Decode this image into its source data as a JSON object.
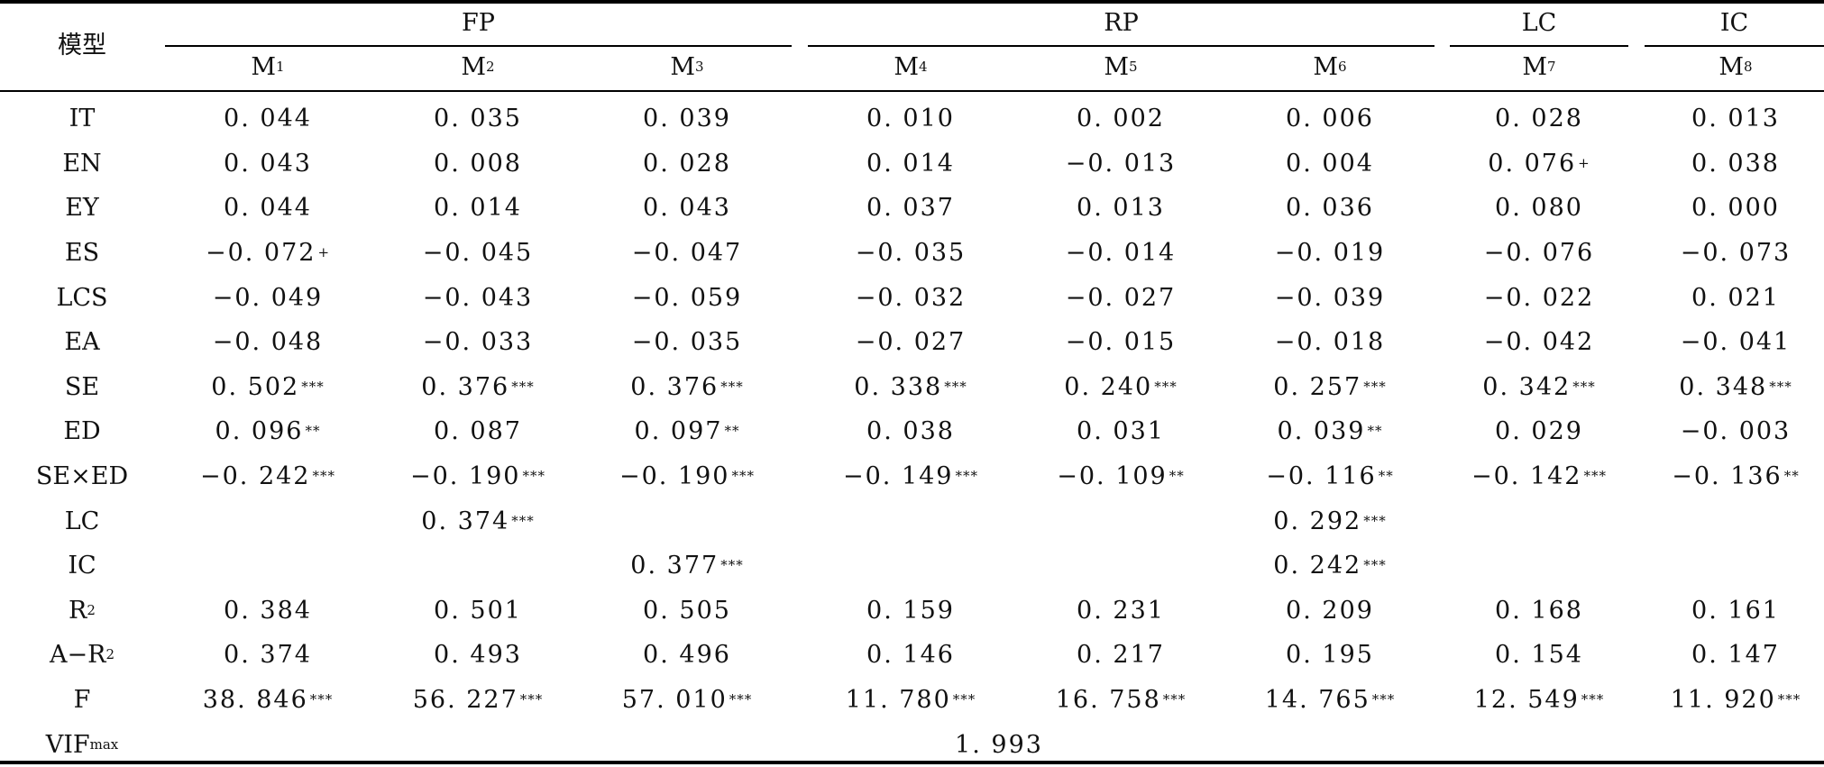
{
  "header": {
    "model_label": "模型",
    "groups": [
      "FP",
      "RP",
      "LC",
      "IC"
    ],
    "models": [
      {
        "base": "M",
        "sub": "1"
      },
      {
        "base": "M",
        "sub": "2"
      },
      {
        "base": "M",
        "sub": "3"
      },
      {
        "base": "M",
        "sub": "4"
      },
      {
        "base": "M",
        "sub": "5"
      },
      {
        "base": "M",
        "sub": "6"
      },
      {
        "base": "M",
        "sub": "7"
      },
      {
        "base": "M",
        "sub": "8"
      }
    ]
  },
  "rows": [
    {
      "label": "IT",
      "cells": [
        {
          "v": "0.044",
          "s": ""
        },
        {
          "v": "0.035",
          "s": ""
        },
        {
          "v": "0.039",
          "s": ""
        },
        {
          "v": "0.010",
          "s": ""
        },
        {
          "v": "0.002",
          "s": ""
        },
        {
          "v": "0.006",
          "s": ""
        },
        {
          "v": "0.028",
          "s": ""
        },
        {
          "v": "0.013",
          "s": ""
        }
      ]
    },
    {
      "label": "EN",
      "cells": [
        {
          "v": "0.043",
          "s": ""
        },
        {
          "v": "0.008",
          "s": ""
        },
        {
          "v": "0.028",
          "s": ""
        },
        {
          "v": "0.014",
          "s": ""
        },
        {
          "v": "−0.013",
          "s": ""
        },
        {
          "v": "0.004",
          "s": ""
        },
        {
          "v": "0.076",
          "s": "+"
        },
        {
          "v": "0.038",
          "s": ""
        }
      ]
    },
    {
      "label": "EY",
      "cells": [
        {
          "v": "0.044",
          "s": ""
        },
        {
          "v": "0.014",
          "s": ""
        },
        {
          "v": "0.043",
          "s": ""
        },
        {
          "v": "0.037",
          "s": ""
        },
        {
          "v": "0.013",
          "s": ""
        },
        {
          "v": "0.036",
          "s": ""
        },
        {
          "v": "0.080",
          "s": ""
        },
        {
          "v": "0.000",
          "s": ""
        }
      ]
    },
    {
      "label": "ES",
      "cells": [
        {
          "v": "−0.072",
          "s": "+"
        },
        {
          "v": "−0.045",
          "s": ""
        },
        {
          "v": "−0.047",
          "s": ""
        },
        {
          "v": "−0.035",
          "s": ""
        },
        {
          "v": "−0.014",
          "s": ""
        },
        {
          "v": "−0.019",
          "s": ""
        },
        {
          "v": "−0.076",
          "s": ""
        },
        {
          "v": "−0.073",
          "s": ""
        }
      ]
    },
    {
      "label": "LCS",
      "cells": [
        {
          "v": "−0.049",
          "s": ""
        },
        {
          "v": "−0.043",
          "s": ""
        },
        {
          "v": "−0.059",
          "s": ""
        },
        {
          "v": "−0.032",
          "s": ""
        },
        {
          "v": "−0.027",
          "s": ""
        },
        {
          "v": "−0.039",
          "s": ""
        },
        {
          "v": "−0.022",
          "s": ""
        },
        {
          "v": "0.021",
          "s": ""
        }
      ]
    },
    {
      "label": "EA",
      "cells": [
        {
          "v": "−0.048",
          "s": ""
        },
        {
          "v": "−0.033",
          "s": ""
        },
        {
          "v": "−0.035",
          "s": ""
        },
        {
          "v": "−0.027",
          "s": ""
        },
        {
          "v": "−0.015",
          "s": ""
        },
        {
          "v": "−0.018",
          "s": ""
        },
        {
          "v": "−0.042",
          "s": ""
        },
        {
          "v": "−0.041",
          "s": ""
        }
      ]
    },
    {
      "label": "SE",
      "cells": [
        {
          "v": "0.502",
          "s": "***"
        },
        {
          "v": "0.376",
          "s": "***"
        },
        {
          "v": "0.376",
          "s": "***"
        },
        {
          "v": "0.338",
          "s": "***"
        },
        {
          "v": "0.240",
          "s": "***"
        },
        {
          "v": "0.257",
          "s": "***"
        },
        {
          "v": "0.342",
          "s": "***"
        },
        {
          "v": "0.348",
          "s": "***"
        }
      ]
    },
    {
      "label": "ED",
      "cells": [
        {
          "v": "0.096",
          "s": "**"
        },
        {
          "v": "0.087",
          "s": ""
        },
        {
          "v": "0.097",
          "s": "**"
        },
        {
          "v": "0.038",
          "s": ""
        },
        {
          "v": "0.031",
          "s": ""
        },
        {
          "v": "0.039",
          "s": "**"
        },
        {
          "v": "0.029",
          "s": ""
        },
        {
          "v": "−0.003",
          "s": ""
        }
      ]
    },
    {
      "label": "SE×ED",
      "cells": [
        {
          "v": "−0.242",
          "s": "***"
        },
        {
          "v": "−0.190",
          "s": "***"
        },
        {
          "v": "−0.190",
          "s": "***"
        },
        {
          "v": "−0.149",
          "s": "***"
        },
        {
          "v": "−0.109",
          "s": "**"
        },
        {
          "v": "−0.116",
          "s": "**"
        },
        {
          "v": "−0.142",
          "s": "***"
        },
        {
          "v": "−0.136",
          "s": "**"
        }
      ]
    },
    {
      "label": "LC",
      "cells": [
        {
          "v": "",
          "s": ""
        },
        {
          "v": "0.374",
          "s": "***"
        },
        {
          "v": "",
          "s": ""
        },
        {
          "v": "",
          "s": ""
        },
        {
          "v": "",
          "s": ""
        },
        {
          "v": "0.292",
          "s": "***"
        },
        {
          "v": "",
          "s": ""
        },
        {
          "v": "",
          "s": ""
        }
      ]
    },
    {
      "label": "IC",
      "cells": [
        {
          "v": "",
          "s": ""
        },
        {
          "v": "",
          "s": ""
        },
        {
          "v": "0.377",
          "s": "***"
        },
        {
          "v": "",
          "s": ""
        },
        {
          "v": "",
          "s": ""
        },
        {
          "v": "0.242",
          "s": "***"
        },
        {
          "v": "",
          "s": ""
        },
        {
          "v": "",
          "s": ""
        }
      ]
    },
    {
      "label": "R",
      "label_sup": "2",
      "cells": [
        {
          "v": "0.384",
          "s": ""
        },
        {
          "v": "0.501",
          "s": ""
        },
        {
          "v": "0.505",
          "s": ""
        },
        {
          "v": "0.159",
          "s": ""
        },
        {
          "v": "0.231",
          "s": ""
        },
        {
          "v": "0.209",
          "s": ""
        },
        {
          "v": "0.168",
          "s": ""
        },
        {
          "v": "0.161",
          "s": ""
        }
      ]
    },
    {
      "label": "A−R",
      "label_sup": "2",
      "cells": [
        {
          "v": "0.374",
          "s": ""
        },
        {
          "v": "0.493",
          "s": ""
        },
        {
          "v": "0.496",
          "s": ""
        },
        {
          "v": "0.146",
          "s": ""
        },
        {
          "v": "0.217",
          "s": ""
        },
        {
          "v": "0.195",
          "s": ""
        },
        {
          "v": "0.154",
          "s": ""
        },
        {
          "v": "0.147",
          "s": ""
        }
      ]
    },
    {
      "label": "F",
      "cells": [
        {
          "v": "38.846",
          "s": "***"
        },
        {
          "v": "56.227",
          "s": "***"
        },
        {
          "v": "57.010",
          "s": "***"
        },
        {
          "v": "11.780",
          "s": "***"
        },
        {
          "v": "16.758",
          "s": "***"
        },
        {
          "v": "14.765",
          "s": "***"
        },
        {
          "v": "12.549",
          "s": "***"
        },
        {
          "v": "11.920",
          "s": "***"
        }
      ]
    }
  ],
  "vif": {
    "label": "VIF",
    "label_sub": "max",
    "value": "1.993"
  }
}
